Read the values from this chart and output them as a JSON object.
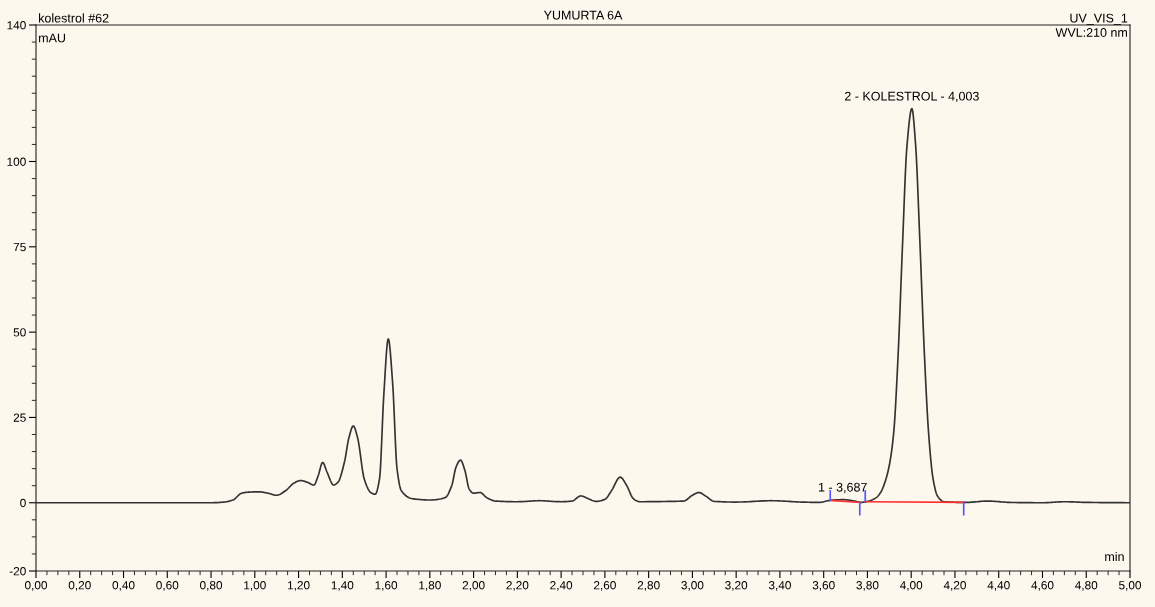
{
  "chart_data": {
    "type": "line",
    "title": "YUMURTA 6A",
    "ylabel": "mAU",
    "xlabel": "min",
    "annotations": [
      "kolestrol #62",
      "UV_VIS_1",
      "WVL:210 nm",
      {
        "text": "1 - 3,687",
        "x": 3.687,
        "y": 0.9
      },
      {
        "text": "2 - KOLESTROL - 4,003",
        "x": 4.003,
        "y": 115.5
      }
    ],
    "xlim": [
      0,
      5
    ],
    "ylim": [
      -20,
      140
    ],
    "grid": false,
    "legend": false,
    "yticks": [
      -20,
      {
        "value": -15,
        "label": null
      },
      {
        "value": -10,
        "label": null
      },
      {
        "value": -5,
        "label": null
      },
      0,
      {
        "value": 5,
        "label": null
      },
      {
        "value": 10,
        "label": null
      },
      {
        "value": 15,
        "label": null
      },
      {
        "value": 20,
        "label": null
      },
      25,
      {
        "value": 30,
        "label": null
      },
      {
        "value": 35,
        "label": null
      },
      {
        "value": 40,
        "label": null
      },
      {
        "value": 45,
        "label": null
      },
      50,
      {
        "value": 55,
        "label": null
      },
      {
        "value": 60,
        "label": null
      },
      {
        "value": 65,
        "label": null
      },
      {
        "value": 70,
        "label": null
      },
      75,
      {
        "value": 80,
        "label": null
      },
      {
        "value": 85,
        "label": null
      },
      {
        "value": 90,
        "label": null
      },
      {
        "value": 95,
        "label": null
      },
      100,
      {
        "value": 105,
        "label": null
      },
      {
        "value": 110,
        "label": null
      },
      {
        "value": 115,
        "label": null
      },
      {
        "value": 120,
        "label": null
      },
      {
        "value": 125,
        "label": null
      },
      {
        "value": 130,
        "label": null
      },
      {
        "value": 135,
        "label": null
      },
      140
    ],
    "xticks": [
      {
        "value": 0,
        "label": "0,00"
      },
      {
        "value": 0.05,
        "label": null
      },
      {
        "value": 0.1,
        "label": null
      },
      {
        "value": 0.15,
        "label": null
      },
      {
        "value": 0.2,
        "label": "0,20"
      },
      {
        "value": 0.25,
        "label": null
      },
      {
        "value": 0.3,
        "label": null
      },
      {
        "value": 0.35,
        "label": null
      },
      {
        "value": 0.4,
        "label": "0,40"
      },
      {
        "value": 0.45,
        "label": null
      },
      {
        "value": 0.5,
        "label": null
      },
      {
        "value": 0.55,
        "label": null
      },
      {
        "value": 0.6,
        "label": "0,60"
      },
      {
        "value": 0.65,
        "label": null
      },
      {
        "value": 0.7,
        "label": null
      },
      {
        "value": 0.75,
        "label": null
      },
      {
        "value": 0.8,
        "label": "0,80"
      },
      {
        "value": 0.85,
        "label": null
      },
      {
        "value": 0.9,
        "label": null
      },
      {
        "value": 0.95,
        "label": null
      },
      {
        "value": 1,
        "label": "1,00"
      },
      {
        "value": 1.05,
        "label": null
      },
      {
        "value": 1.1,
        "label": null
      },
      {
        "value": 1.15,
        "label": null
      },
      {
        "value": 1.2,
        "label": "1,20"
      },
      {
        "value": 1.25,
        "label": null
      },
      {
        "value": 1.3,
        "label": null
      },
      {
        "value": 1.35,
        "label": null
      },
      {
        "value": 1.4,
        "label": "1,40"
      },
      {
        "value": 1.45,
        "label": null
      },
      {
        "value": 1.5,
        "label": null
      },
      {
        "value": 1.55,
        "label": null
      },
      {
        "value": 1.6,
        "label": "1,60"
      },
      {
        "value": 1.65,
        "label": null
      },
      {
        "value": 1.7,
        "label": null
      },
      {
        "value": 1.75,
        "label": null
      },
      {
        "value": 1.8,
        "label": "1,80"
      },
      {
        "value": 1.85,
        "label": null
      },
      {
        "value": 1.9,
        "label": null
      },
      {
        "value": 1.95,
        "label": null
      },
      {
        "value": 2,
        "label": "2,00"
      },
      {
        "value": 2.05,
        "label": null
      },
      {
        "value": 2.1,
        "label": null
      },
      {
        "value": 2.15,
        "label": null
      },
      {
        "value": 2.2,
        "label": "2,20"
      },
      {
        "value": 2.25,
        "label": null
      },
      {
        "value": 2.3,
        "label": null
      },
      {
        "value": 2.35,
        "label": null
      },
      {
        "value": 2.4,
        "label": "2,40"
      },
      {
        "value": 2.45,
        "label": null
      },
      {
        "value": 2.5,
        "label": null
      },
      {
        "value": 2.55,
        "label": null
      },
      {
        "value": 2.6,
        "label": "2,60"
      },
      {
        "value": 2.65,
        "label": null
      },
      {
        "value": 2.7,
        "label": null
      },
      {
        "value": 2.75,
        "label": null
      },
      {
        "value": 2.8,
        "label": "2,80"
      },
      {
        "value": 2.85,
        "label": null
      },
      {
        "value": 2.9,
        "label": null
      },
      {
        "value": 2.95,
        "label": null
      },
      {
        "value": 3,
        "label": "3,00"
      },
      {
        "value": 3.05,
        "label": null
      },
      {
        "value": 3.1,
        "label": null
      },
      {
        "value": 3.15,
        "label": null
      },
      {
        "value": 3.2,
        "label": "3,20"
      },
      {
        "value": 3.25,
        "label": null
      },
      {
        "value": 3.3,
        "label": null
      },
      {
        "value": 3.35,
        "label": null
      },
      {
        "value": 3.4,
        "label": "3,40"
      },
      {
        "value": 3.45,
        "label": null
      },
      {
        "value": 3.5,
        "label": null
      },
      {
        "value": 3.55,
        "label": null
      },
      {
        "value": 3.6,
        "label": "3,60"
      },
      {
        "value": 3.65,
        "label": null
      },
      {
        "value": 3.7,
        "label": null
      },
      {
        "value": 3.75,
        "label": null
      },
      {
        "value": 3.8,
        "label": "3,80"
      },
      {
        "value": 3.85,
        "label": null
      },
      {
        "value": 3.9,
        "label": null
      },
      {
        "value": 3.95,
        "label": null
      },
      {
        "value": 4,
        "label": "4,00"
      },
      {
        "value": 4.05,
        "label": null
      },
      {
        "value": 4.1,
        "label": null
      },
      {
        "value": 4.15,
        "label": null
      },
      {
        "value": 4.2,
        "label": "4,20"
      },
      {
        "value": 4.25,
        "label": null
      },
      {
        "value": 4.3,
        "label": null
      },
      {
        "value": 4.35,
        "label": null
      },
      {
        "value": 4.4,
        "label": "4,40"
      },
      {
        "value": 4.45,
        "label": null
      },
      {
        "value": 4.5,
        "label": null
      },
      {
        "value": 4.55,
        "label": null
      },
      {
        "value": 4.6,
        "label": "4,60"
      },
      {
        "value": 4.65,
        "label": null
      },
      {
        "value": 4.7,
        "label": null
      },
      {
        "value": 4.75,
        "label": null
      },
      {
        "value": 4.8,
        "label": "4,80"
      },
      {
        "value": 4.85,
        "label": null
      },
      {
        "value": 4.9,
        "label": null
      },
      {
        "value": 4.95,
        "label": null
      },
      {
        "value": 5,
        "label": "5,00"
      }
    ],
    "series": [
      {
        "color": "#333333",
        "x": [
          0,
          0.5,
          0.8,
          0.86,
          0.9,
          0.94,
          0.97,
          1.02,
          1.06,
          1.1,
          1.14,
          1.18,
          1.21,
          1.24,
          1.27,
          1.29,
          1.31,
          1.33,
          1.36,
          1.38,
          1.41,
          1.43,
          1.45,
          1.47,
          1.5,
          1.53,
          1.55,
          1.57,
          1.59,
          1.61,
          1.63,
          1.65,
          1.67,
          1.72,
          1.8,
          1.87,
          1.9,
          1.92,
          1.94,
          1.96,
          1.98,
          2.0,
          2.03,
          2.06,
          2.1,
          2.2,
          2.3,
          2.4,
          2.45,
          2.49,
          2.52,
          2.56,
          2.6,
          2.63,
          2.67,
          2.7,
          2.73,
          2.76,
          2.9,
          2.96,
          3.0,
          3.03,
          3.06,
          3.1,
          3.2,
          3.36,
          3.5,
          3.58,
          3.63,
          3.69,
          3.74,
          3.77,
          3.8,
          3.84,
          3.86,
          3.88,
          3.9,
          3.92,
          3.94,
          3.96,
          3.98,
          4.003,
          4.02,
          4.04,
          4.06,
          4.08,
          4.1,
          4.12,
          4.15,
          4.25,
          4.35,
          4.45,
          4.6,
          4.7,
          4.8,
          5.0
        ],
        "values": [
          0,
          0,
          0,
          0.2,
          0.8,
          2.8,
          3.1,
          3.2,
          2.8,
          2.2,
          3.5,
          5.8,
          6.5,
          6.0,
          5.2,
          8,
          11.8,
          9,
          5.2,
          6,
          12,
          19,
          22.5,
          19,
          7,
          3,
          2.5,
          7,
          32,
          48,
          35,
          10,
          3.5,
          1.2,
          0.8,
          1.5,
          5,
          10.5,
          12.5,
          9.5,
          4,
          2.8,
          3.0,
          1.5,
          0.5,
          0.3,
          0.6,
          0.3,
          0.5,
          2.0,
          1.3,
          0.4,
          1.0,
          3.5,
          7.5,
          5,
          1.2,
          0.3,
          0.4,
          0.5,
          2.2,
          3.0,
          2.0,
          0.4,
          0.2,
          0.6,
          0.2,
          0.1,
          0.7,
          0.9,
          0.5,
          0.1,
          0.4,
          1.5,
          3,
          6,
          11,
          20.5,
          43,
          75,
          104,
          115.5,
          105,
          76,
          44,
          20,
          7,
          2,
          0.3,
          0.1,
          0.5,
          0.1,
          0,
          0.3,
          0.1,
          0
        ]
      },
      {
        "color": "#ff3030",
        "x": [
          3.63,
          3.77
        ],
        "values": [
          0.7,
          0.1
        ]
      },
      {
        "color": "#ff3030",
        "x": [
          3.79,
          4.24
        ],
        "values": [
          0.3,
          0.1
        ]
      },
      {
        "color": "#5555ff",
        "x": [
          3.63,
          3.63
        ],
        "values": [
          0.7,
          3.5
        ]
      },
      {
        "color": "#5555ff",
        "x": [
          3.765,
          3.765
        ],
        "values": [
          0.1,
          -3.5
        ]
      },
      {
        "color": "#5555ff",
        "x": [
          3.79,
          3.79
        ],
        "values": [
          0.3,
          3.5
        ]
      },
      {
        "color": "#5555ff",
        "x": [
          4.24,
          4.24
        ],
        "values": [
          0.1,
          -3.5
        ]
      }
    ]
  }
}
